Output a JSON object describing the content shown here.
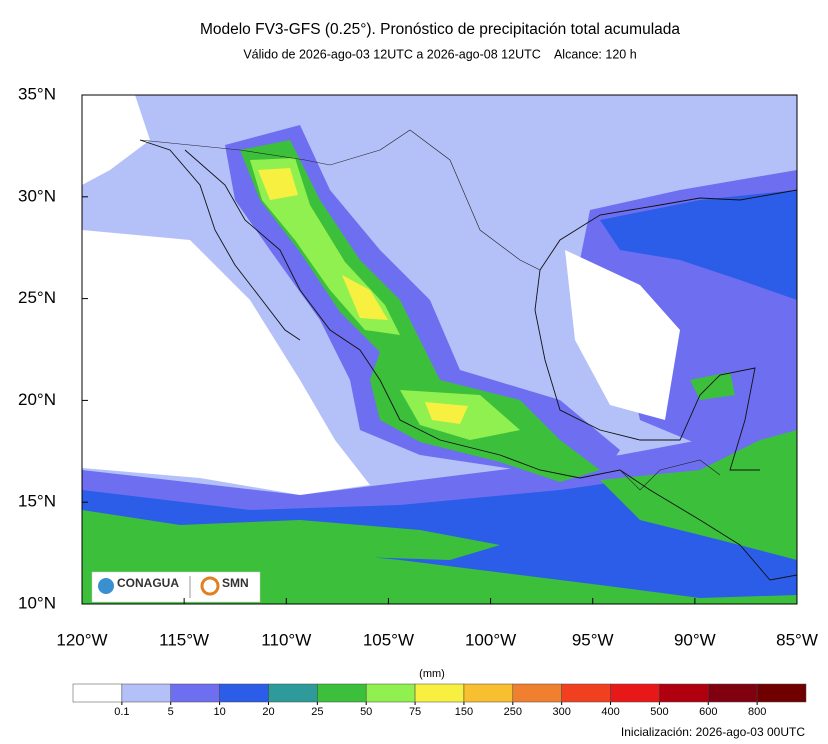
{
  "title": "Modelo FV3-GFS (0.25°). Pronóstico de precipitación total acumulada",
  "subtitle": "Válido de 2026-ago-03 12UTC a 2026-ago-08 12UTC    Alcance: 120 h",
  "map": {
    "xlim": [
      -120,
      -85
    ],
    "ylim": [
      10,
      35
    ],
    "xticks": [
      {
        "value": -120,
        "label": "120°W"
      },
      {
        "value": -115,
        "label": "115°W"
      },
      {
        "value": -110,
        "label": "110°W"
      },
      {
        "value": -105,
        "label": "105°W"
      },
      {
        "value": -100,
        "label": "100°W"
      },
      {
        "value": -95,
        "label": "95°W"
      },
      {
        "value": -90,
        "label": "90°W"
      },
      {
        "value": -85,
        "label": "85°W"
      }
    ],
    "yticks": [
      {
        "value": 10,
        "label": "10°N"
      },
      {
        "value": 15,
        "label": "15°N"
      },
      {
        "value": 20,
        "label": "20°N"
      },
      {
        "value": 25,
        "label": "25°N"
      },
      {
        "value": 30,
        "label": "30°N"
      },
      {
        "value": 35,
        "label": "35°N"
      }
    ]
  },
  "logos": [
    "CONAGUA",
    "SMN"
  ],
  "colorbar": {
    "unit": "(mm)",
    "levels": [
      0.1,
      5,
      10,
      20,
      25,
      50,
      75,
      150,
      250,
      300,
      400,
      500,
      600,
      800
    ],
    "colors": [
      "#ffffff",
      "#b4c0f8",
      "#6e6ef0",
      "#2b5de8",
      "#2e9a9a",
      "#3cc03c",
      "#90f050",
      "#f8f040",
      "#f8c030",
      "#f08030",
      "#f04020",
      "#e81818",
      "#b00010",
      "#800010",
      "#700000"
    ]
  },
  "initialization": "Inicialización: 2026-ago-03 00UTC"
}
